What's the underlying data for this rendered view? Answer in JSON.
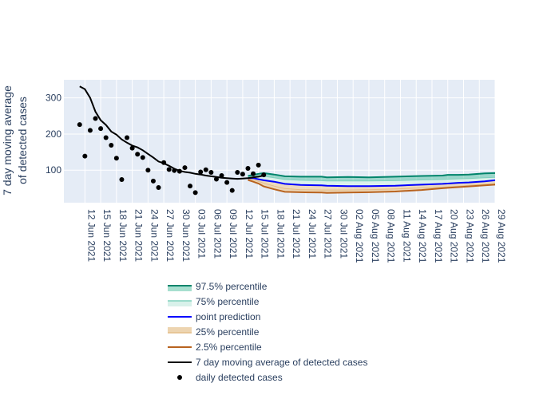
{
  "chart_data": {
    "type": "line",
    "title": "",
    "xlabel": "",
    "ylabel": [
      "7 day moving average",
      "of detected cases"
    ],
    "x_range": [
      "2021-06-08",
      "2021-08-29"
    ],
    "ylim": [
      10,
      350
    ],
    "y_ticks": [
      100,
      200,
      300
    ],
    "x_ticks": [
      {
        "date": "2021-06-12",
        "label": "12 Jun 2021"
      },
      {
        "date": "2021-06-15",
        "label": "15 Jun 2021"
      },
      {
        "date": "2021-06-18",
        "label": "18 Jun 2021"
      },
      {
        "date": "2021-06-21",
        "label": "21 Jun 2021"
      },
      {
        "date": "2021-06-24",
        "label": "24 Jun 2021"
      },
      {
        "date": "2021-06-27",
        "label": "27 Jun 2021"
      },
      {
        "date": "2021-06-30",
        "label": "30 Jun 2021"
      },
      {
        "date": "2021-07-03",
        "label": "03 Jul 2021"
      },
      {
        "date": "2021-07-06",
        "label": "06 Jul 2021"
      },
      {
        "date": "2021-07-09",
        "label": "09 Jul 2021"
      },
      {
        "date": "2021-07-12",
        "label": "12 Jul 2021"
      },
      {
        "date": "2021-07-15",
        "label": "15 Jul 2021"
      },
      {
        "date": "2021-07-18",
        "label": "18 Jul 2021"
      },
      {
        "date": "2021-07-21",
        "label": "21 Jul 2021"
      },
      {
        "date": "2021-07-24",
        "label": "24 Jul 2021"
      },
      {
        "date": "2021-07-27",
        "label": "27 Jul 2021"
      },
      {
        "date": "2021-07-30",
        "label": "30 Jul 2021"
      },
      {
        "date": "2021-08-02",
        "label": "02 Aug 2021"
      },
      {
        "date": "2021-08-05",
        "label": "05 Aug 2021"
      },
      {
        "date": "2021-08-08",
        "label": "08 Aug 2021"
      },
      {
        "date": "2021-08-11",
        "label": "11 Aug 2021"
      },
      {
        "date": "2021-08-14",
        "label": "14 Aug 2021"
      },
      {
        "date": "2021-08-17",
        "label": "17 Aug 2021"
      },
      {
        "date": "2021-08-20",
        "label": "20 Aug 2021"
      },
      {
        "date": "2021-08-23",
        "label": "23 Aug 2021"
      },
      {
        "date": "2021-08-26",
        "label": "26 Aug 2021"
      },
      {
        "date": "2021-08-29",
        "label": "29 Aug 2021"
      }
    ],
    "grid": true,
    "legend_position": "bottom",
    "colors": {
      "plot_bg": "#e5ecf6",
      "p975_line": "#00846b",
      "p975_fill": "#5ec4a8",
      "p75_fill": "#d8f1ea",
      "point_prediction": "#0000ff",
      "p25_fill": "#edd4b0",
      "p025_line": "#b8631f",
      "moving_average": "#000000",
      "daily": "#000000"
    },
    "legend": [
      {
        "key": "p975",
        "label": "97.5% percentile"
      },
      {
        "key": "p75",
        "label": "75% percentile"
      },
      {
        "key": "point",
        "label": "point prediction"
      },
      {
        "key": "p25",
        "label": "25% percentile"
      },
      {
        "key": "p025",
        "label": "2.5% percentile"
      },
      {
        "key": "ma",
        "label": "7 day moving average of detected cases"
      },
      {
        "key": "daily",
        "label": "daily detected cases"
      }
    ],
    "daily_detected_cases": {
      "x": [
        "2021-06-11",
        "2021-06-12",
        "2021-06-13",
        "2021-06-14",
        "2021-06-15",
        "2021-06-16",
        "2021-06-17",
        "2021-06-18",
        "2021-06-19",
        "2021-06-20",
        "2021-06-21",
        "2021-06-22",
        "2021-06-23",
        "2021-06-24",
        "2021-06-25",
        "2021-06-26",
        "2021-06-27",
        "2021-06-28",
        "2021-06-29",
        "2021-06-30",
        "2021-07-01",
        "2021-07-02",
        "2021-07-03",
        "2021-07-04",
        "2021-07-05",
        "2021-07-06",
        "2021-07-07",
        "2021-07-08",
        "2021-07-09",
        "2021-07-10",
        "2021-07-11",
        "2021-07-12",
        "2021-07-13",
        "2021-07-14",
        "2021-07-15",
        "2021-07-16"
      ],
      "y": [
        226,
        139,
        210,
        243,
        215,
        190,
        169,
        133,
        74,
        190,
        161,
        144,
        135,
        100,
        70,
        52,
        121,
        102,
        99,
        97,
        107,
        56,
        38,
        95,
        101,
        94,
        75,
        85,
        66,
        44,
        94,
        89,
        105,
        90,
        114,
        87
      ]
    },
    "moving_average": {
      "x": [
        "2021-06-11",
        "2021-06-12",
        "2021-06-13",
        "2021-06-14",
        "2021-06-15",
        "2021-06-16",
        "2021-06-17",
        "2021-06-18",
        "2021-06-19",
        "2021-06-20",
        "2021-06-21",
        "2021-06-22",
        "2021-06-23",
        "2021-06-24",
        "2021-06-25",
        "2021-06-26",
        "2021-06-27",
        "2021-06-28",
        "2021-06-29",
        "2021-06-30",
        "2021-07-01",
        "2021-07-02",
        "2021-07-03",
        "2021-07-04",
        "2021-07-05",
        "2021-07-06",
        "2021-07-07",
        "2021-07-08",
        "2021-07-09",
        "2021-07-10",
        "2021-07-11",
        "2021-07-12",
        "2021-07-13",
        "2021-07-14",
        "2021-07-15",
        "2021-07-16"
      ],
      "y": [
        332,
        324,
        300,
        262,
        238,
        225,
        207,
        198,
        185,
        176,
        168,
        163,
        155,
        145,
        135,
        124,
        119,
        112,
        104,
        98,
        95,
        93,
        90,
        88,
        85,
        83,
        81,
        79,
        78,
        77,
        76,
        77,
        78,
        80,
        82,
        85
      ]
    },
    "forecast_x": [
      "2021-07-13",
      "2021-07-14",
      "2021-07-15",
      "2021-07-16",
      "2021-07-18",
      "2021-07-20",
      "2021-07-23",
      "2021-07-27",
      "2021-07-28",
      "2021-08-01",
      "2021-08-05",
      "2021-08-10",
      "2021-08-15",
      "2021-08-19",
      "2021-08-20",
      "2021-08-22",
      "2021-08-24",
      "2021-08-27",
      "2021-08-29"
    ],
    "p975": [
      84,
      87,
      90,
      92,
      88,
      83,
      82,
      82,
      80,
      81,
      80,
      82,
      84,
      85,
      87,
      87,
      88,
      91,
      92
    ],
    "p75": [
      80,
      81,
      84,
      83,
      79,
      74,
      72,
      71,
      70,
      70,
      70,
      71,
      73,
      74,
      75,
      76,
      77,
      79,
      80
    ],
    "point_prediction": [
      78,
      78,
      75,
      72,
      68,
      62,
      59,
      58,
      57,
      56,
      56,
      57,
      60,
      62,
      63,
      65,
      66,
      69,
      72
    ],
    "p25": [
      76,
      73,
      69,
      64,
      56,
      49,
      46,
      45,
      45,
      45,
      46,
      48,
      51,
      53,
      54,
      56,
      58,
      61,
      63
    ],
    "p025": [
      73,
      68,
      63,
      55,
      47,
      40,
      39,
      38,
      37,
      38,
      39,
      41,
      45,
      50,
      51,
      53,
      55,
      58,
      60
    ]
  }
}
